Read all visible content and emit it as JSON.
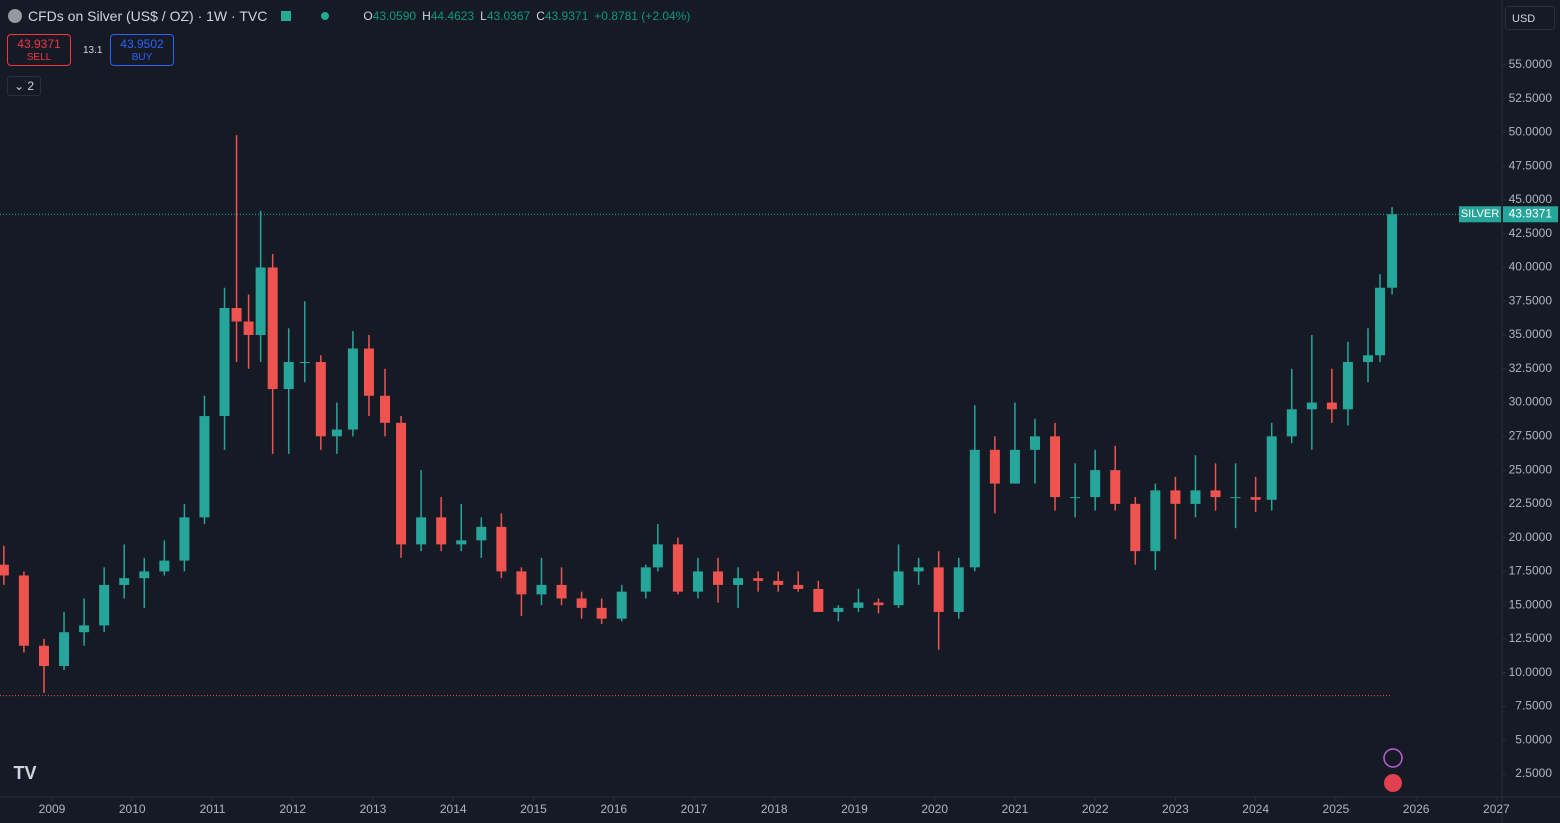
{
  "header": {
    "title": "CFDs on Silver (US$ / OZ) · 1W · TVC",
    "ohlc": [
      {
        "key": "O",
        "value": "43.0590"
      },
      {
        "key": "H",
        "value": "44.4623"
      },
      {
        "key": "L",
        "value": "43.0367"
      },
      {
        "key": "C",
        "value": "43.9371"
      }
    ],
    "change": "+0.8781 (+2.04%)",
    "sell_price": "43.9371",
    "sell_label": "SELL",
    "spread": "13.1",
    "buy_price": "43.9502",
    "buy_label": "BUY",
    "indicators": "2",
    "currency": "USD"
  },
  "chart_data": {
    "type": "candlestick",
    "up_color": "#26a69a",
    "down_color": "#ef5350",
    "x": [
      2008.4,
      2008.65,
      2008.9,
      2009.15,
      2009.4,
      2009.65,
      2009.9,
      2010.15,
      2010.4,
      2010.65,
      2010.9,
      2011.15,
      2011.3,
      2011.45,
      2011.6,
      2011.75,
      2011.95,
      2012.15,
      2012.35,
      2012.55,
      2012.75,
      2012.95,
      2013.15,
      2013.35,
      2013.6,
      2013.85,
      2014.1,
      2014.35,
      2014.6,
      2014.85,
      2015.1,
      2015.35,
      2015.6,
      2015.85,
      2016.1,
      2016.4,
      2016.55,
      2016.8,
      2017.05,
      2017.3,
      2017.55,
      2017.8,
      2018.05,
      2018.3,
      2018.55,
      2018.8,
      2019.05,
      2019.3,
      2019.55,
      2019.8,
      2020.05,
      2020.3,
      2020.5,
      2020.75,
      2021.0,
      2021.25,
      2021.5,
      2021.75,
      2022.0,
      2022.25,
      2022.5,
      2022.75,
      2023.0,
      2023.25,
      2023.5,
      2023.75,
      2024.0,
      2024.2,
      2024.45,
      2024.7,
      2024.95,
      2025.15,
      2025.4,
      2025.55,
      2025.7
    ],
    "candles": [
      [
        18.0,
        19.4,
        16.5,
        17.2
      ],
      [
        17.2,
        17.5,
        11.5,
        12.0
      ],
      [
        12.0,
        12.5,
        8.5,
        10.5
      ],
      [
        10.5,
        14.5,
        10.2,
        13.0
      ],
      [
        13.0,
        15.5,
        12.0,
        13.5
      ],
      [
        13.5,
        17.8,
        13.0,
        16.5
      ],
      [
        16.5,
        19.5,
        15.5,
        17.0
      ],
      [
        17.0,
        18.5,
        14.8,
        17.5
      ],
      [
        17.5,
        19.8,
        17.2,
        18.3
      ],
      [
        18.3,
        22.5,
        17.5,
        21.5
      ],
      [
        21.5,
        30.5,
        21.0,
        29.0
      ],
      [
        29.0,
        38.5,
        26.5,
        37.0
      ],
      [
        37.0,
        49.8,
        33.0,
        36.0
      ],
      [
        36.0,
        38.0,
        32.5,
        35.0
      ],
      [
        35.0,
        44.2,
        33.0,
        40.0
      ],
      [
        40.0,
        41.0,
        26.2,
        31.0
      ],
      [
        31.0,
        35.5,
        26.2,
        33.0
      ],
      [
        33.0,
        37.5,
        31.5,
        33.0
      ],
      [
        33.0,
        33.5,
        26.5,
        27.5
      ],
      [
        27.5,
        30.0,
        26.2,
        28.0
      ],
      [
        28.0,
        35.3,
        27.5,
        34.0
      ],
      [
        34.0,
        35.0,
        29.0,
        30.5
      ],
      [
        30.5,
        32.5,
        27.5,
        28.5
      ],
      [
        28.5,
        29.0,
        18.5,
        19.5
      ],
      [
        19.5,
        25.0,
        19.0,
        21.5
      ],
      [
        21.5,
        23.0,
        19.0,
        19.5
      ],
      [
        19.5,
        22.5,
        19.0,
        19.8
      ],
      [
        19.8,
        21.5,
        18.5,
        20.8
      ],
      [
        20.8,
        21.8,
        17.0,
        17.5
      ],
      [
        17.5,
        17.8,
        14.2,
        15.8
      ],
      [
        15.8,
        18.5,
        15.0,
        16.5
      ],
      [
        16.5,
        17.8,
        15.0,
        15.5
      ],
      [
        15.5,
        16.0,
        14.0,
        14.8
      ],
      [
        14.8,
        15.5,
        13.6,
        14.0
      ],
      [
        14.0,
        16.5,
        13.8,
        16.0
      ],
      [
        16.0,
        18.0,
        15.5,
        17.8
      ],
      [
        17.8,
        21.0,
        17.5,
        19.5
      ],
      [
        19.5,
        20.0,
        15.8,
        16.0
      ],
      [
        16.0,
        18.5,
        15.5,
        17.5
      ],
      [
        17.5,
        18.5,
        15.2,
        16.5
      ],
      [
        16.5,
        17.8,
        14.8,
        17.0
      ],
      [
        17.0,
        17.5,
        16.0,
        16.8
      ],
      [
        16.8,
        17.5,
        16.0,
        16.5
      ],
      [
        16.5,
        17.5,
        16.0,
        16.2
      ],
      [
        16.2,
        16.8,
        14.5,
        14.5
      ],
      [
        14.5,
        15.0,
        13.8,
        14.8
      ],
      [
        14.8,
        16.2,
        14.5,
        15.2
      ],
      [
        15.2,
        15.5,
        14.4,
        15.0
      ],
      [
        15.0,
        19.5,
        14.8,
        17.5
      ],
      [
        17.5,
        18.5,
        16.5,
        17.8
      ],
      [
        17.8,
        19.0,
        11.7,
        14.5
      ],
      [
        14.5,
        18.5,
        14.0,
        17.8
      ],
      [
        17.8,
        29.8,
        17.5,
        26.5
      ],
      [
        26.5,
        27.5,
        21.8,
        24.0
      ],
      [
        24.0,
        30.0,
        24.0,
        26.5
      ],
      [
        26.5,
        28.8,
        24.0,
        27.5
      ],
      [
        27.5,
        28.5,
        22.0,
        23.0
      ],
      [
        23.0,
        25.5,
        21.5,
        23.0
      ],
      [
        23.0,
        26.5,
        22.0,
        25.0
      ],
      [
        25.0,
        26.8,
        22.0,
        22.5
      ],
      [
        22.5,
        23.0,
        18.0,
        19.0
      ],
      [
        19.0,
        24.0,
        17.6,
        23.5
      ],
      [
        23.5,
        24.5,
        19.9,
        22.5
      ],
      [
        22.5,
        26.1,
        21.5,
        23.5
      ],
      [
        23.5,
        25.5,
        22.0,
        23.0
      ],
      [
        23.0,
        25.5,
        20.7,
        23.0
      ],
      [
        23.0,
        24.5,
        21.9,
        22.8
      ],
      [
        22.8,
        28.5,
        22.0,
        27.5
      ],
      [
        27.5,
        32.5,
        27.0,
        29.5
      ],
      [
        29.5,
        35.0,
        26.5,
        30.0
      ],
      [
        30.0,
        32.5,
        28.5,
        29.5
      ],
      [
        29.5,
        34.5,
        28.3,
        33.0
      ],
      [
        33.0,
        35.5,
        31.5,
        33.5
      ],
      [
        33.5,
        39.5,
        33.0,
        38.5
      ],
      [
        38.5,
        44.4623,
        38.0,
        43.9371
      ]
    ],
    "xlim": [
      2008.352,
      2027.07
    ],
    "xticks": [
      2009,
      2010,
      2011,
      2012,
      2013,
      2014,
      2015,
      2016,
      2017,
      2018,
      2019,
      2020,
      2021,
      2022,
      2023,
      2024,
      2025,
      2026,
      2027
    ],
    "ylim": [
      0.8,
      59.8
    ],
    "yticks": [
      {
        "value": 2.5,
        "label": "2.5000"
      },
      {
        "value": 5,
        "label": "5.0000"
      },
      {
        "value": 7.5,
        "label": "7.5000"
      },
      {
        "value": 10,
        "label": "10.0000"
      },
      {
        "value": 12.5,
        "label": "12.5000"
      },
      {
        "value": 15,
        "label": "15.0000"
      },
      {
        "value": 17.5,
        "label": "17.5000"
      },
      {
        "value": 20,
        "label": "20.0000"
      },
      {
        "value": 22.5,
        "label": "22.5000"
      },
      {
        "value": 25,
        "label": "25.0000"
      },
      {
        "value": 27.5,
        "label": "27.5000"
      },
      {
        "value": 30,
        "label": "30.0000"
      },
      {
        "value": 32.5,
        "label": "32.5000"
      },
      {
        "value": 35,
        "label": "35.0000"
      },
      {
        "value": 37.5,
        "label": "37.5000"
      },
      {
        "value": 40,
        "label": "40.0000"
      },
      {
        "value": 42.5,
        "label": "42.5000"
      },
      {
        "value": 45,
        "label": "45.0000"
      },
      {
        "value": 47.5,
        "label": "47.5000"
      },
      {
        "value": 50,
        "label": "50.0000"
      },
      {
        "value": 52.5,
        "label": "52.5000"
      },
      {
        "value": 55,
        "label": "55.0000"
      }
    ],
    "last_price": {
      "name": "SILVER",
      "value": 43.9371,
      "label": "43.9371"
    },
    "low_line": 8.3
  }
}
